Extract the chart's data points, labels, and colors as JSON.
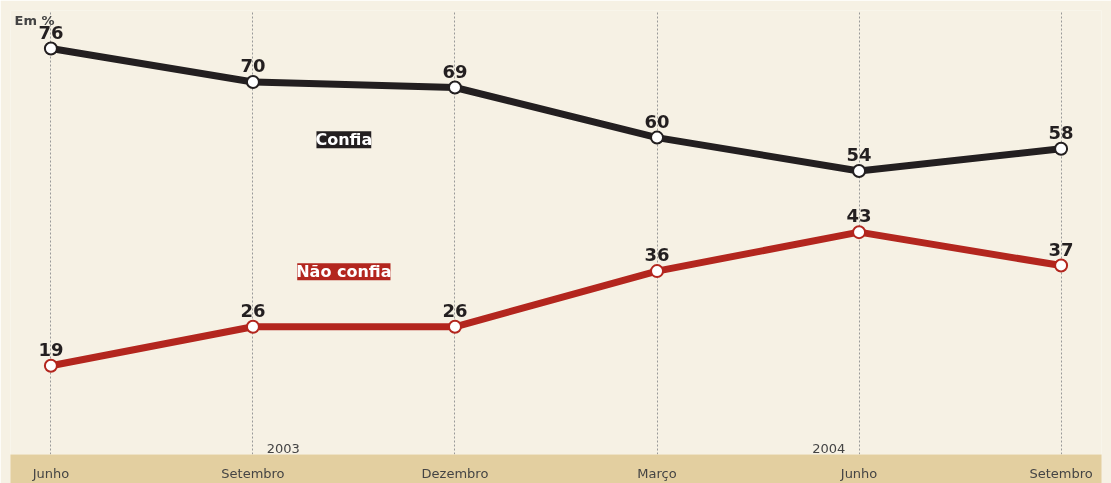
{
  "chart_data": {
    "type": "line",
    "categories": [
      "Junho",
      "Setembro",
      "Dezembro",
      "Março",
      "Junho",
      "Setembro"
    ],
    "series": [
      {
        "name": "Confia",
        "color": "#231f20",
        "values": [
          76,
          70,
          69,
          60,
          54,
          58
        ]
      },
      {
        "name": "Não confia",
        "color": "#b3261e",
        "values": [
          19,
          26,
          26,
          36,
          43,
          37
        ]
      }
    ],
    "data_labels": true,
    "marker": "circle",
    "grid": "x",
    "annotations": [
      "Em %",
      "2003",
      "2004"
    ]
  }
}
